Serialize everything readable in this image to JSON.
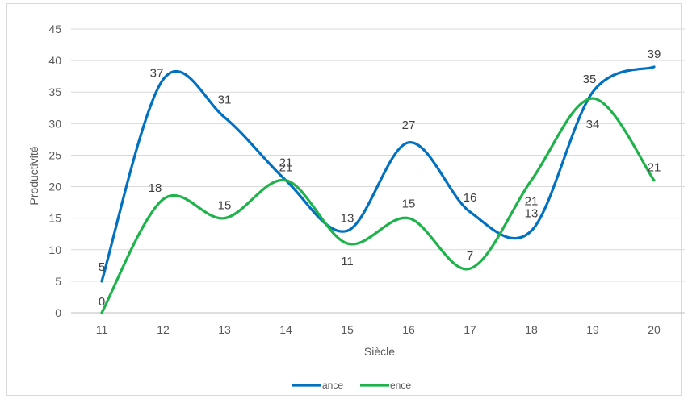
{
  "chart_data": {
    "type": "line",
    "smooth": true,
    "title": "",
    "xlabel": "Siècle",
    "ylabel": "Productivité",
    "categories": [
      "11",
      "12",
      "13",
      "14",
      "15",
      "16",
      "17",
      "18",
      "19",
      "20"
    ],
    "ylim": [
      0,
      45
    ],
    "yticks": [
      0,
      5,
      10,
      15,
      20,
      25,
      30,
      35,
      40,
      45
    ],
    "grid": "horizontal",
    "legend_position": "bottom",
    "series": [
      {
        "name": "ance",
        "color": "#0070c0",
        "values": [
          5,
          37,
          31,
          21,
          13,
          27,
          16,
          13,
          35,
          39
        ]
      },
      {
        "name": "ence",
        "color": "#1db34a",
        "values": [
          0,
          18,
          15,
          21,
          11,
          15,
          7,
          21,
          34,
          21
        ]
      }
    ]
  }
}
